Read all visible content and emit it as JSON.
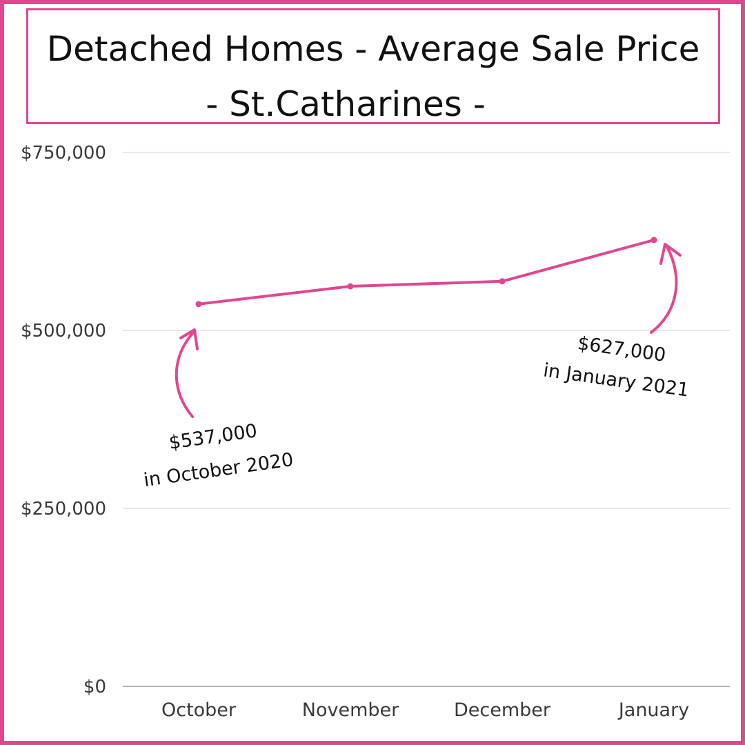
{
  "chart_data": {
    "type": "line",
    "title": "Detached Homes - Average Sale Price",
    "subtitle": "- St.Catharines -",
    "categories": [
      "October",
      "November",
      "December",
      "January"
    ],
    "series": [
      {
        "values": [
          537000,
          562000,
          569000,
          627000
        ]
      }
    ],
    "yticks": [
      0,
      250000,
      500000,
      750000
    ],
    "ytick_labels": [
      "$0",
      "$250,000",
      "$500,000",
      "$750,000"
    ],
    "ylim": [
      0,
      750000
    ],
    "grid": true,
    "line_color": "#e2468f",
    "annotations": [
      {
        "index": 0,
        "line1": "$537,000",
        "line2": "in October 2020"
      },
      {
        "index": 3,
        "line1": "$627,000",
        "line2": "in January 2021"
      }
    ]
  },
  "colors": {
    "accent": "#e2468f",
    "grid": "#d9d9d9",
    "text": "#111111",
    "axis_text": "#3a3a3a"
  }
}
